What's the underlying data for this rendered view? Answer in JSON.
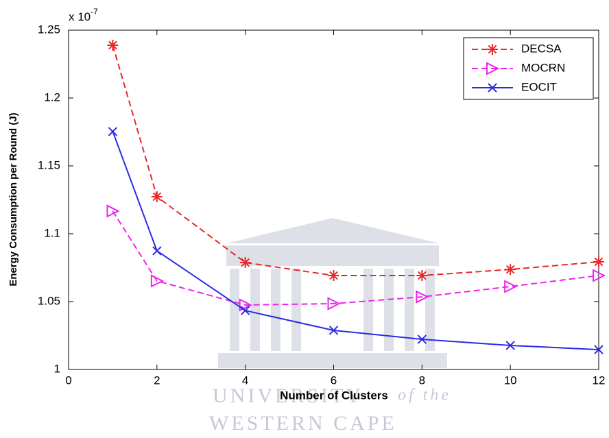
{
  "chart_data": {
    "type": "line",
    "xlabel": "Number of Clusters",
    "ylabel": "Energy Consumption per Round (J)",
    "y_exponent": {
      "base": "x 10",
      "power": "-7"
    },
    "x": [
      1,
      2,
      4,
      6,
      8,
      10,
      12
    ],
    "series": [
      {
        "name": "DECSA",
        "color": "#e8282a",
        "dash": "dashed",
        "marker": "star",
        "values": [
          1.2389,
          1.1273,
          1.0788,
          1.0692,
          1.0692,
          1.0737,
          1.0793
        ]
      },
      {
        "name": "MOCRN",
        "color": "#ee22ee",
        "dash": "dashed",
        "marker": "triangle-right",
        "values": [
          1.1167,
          1.0652,
          1.0475,
          1.0485,
          1.0535,
          1.0611,
          1.0692
        ]
      },
      {
        "name": "EOCIT",
        "color": "#2a2ae6",
        "dash": "solid",
        "marker": "x",
        "values": [
          1.1753,
          1.0874,
          1.0434,
          1.0288,
          1.0222,
          1.0177,
          1.0146
        ]
      }
    ],
    "xlim": [
      0,
      12
    ],
    "xticks": [
      0,
      2,
      4,
      6,
      8,
      10,
      12
    ],
    "ylim": [
      1,
      1.25
    ],
    "yticks": [
      1,
      1.05,
      1.1,
      1.15,
      1.2,
      1.25
    ],
    "grid": false,
    "legend": "northeast",
    "watermark": [
      "UNIVERSITY",
      "of the",
      "WESTERN CAPE"
    ]
  }
}
